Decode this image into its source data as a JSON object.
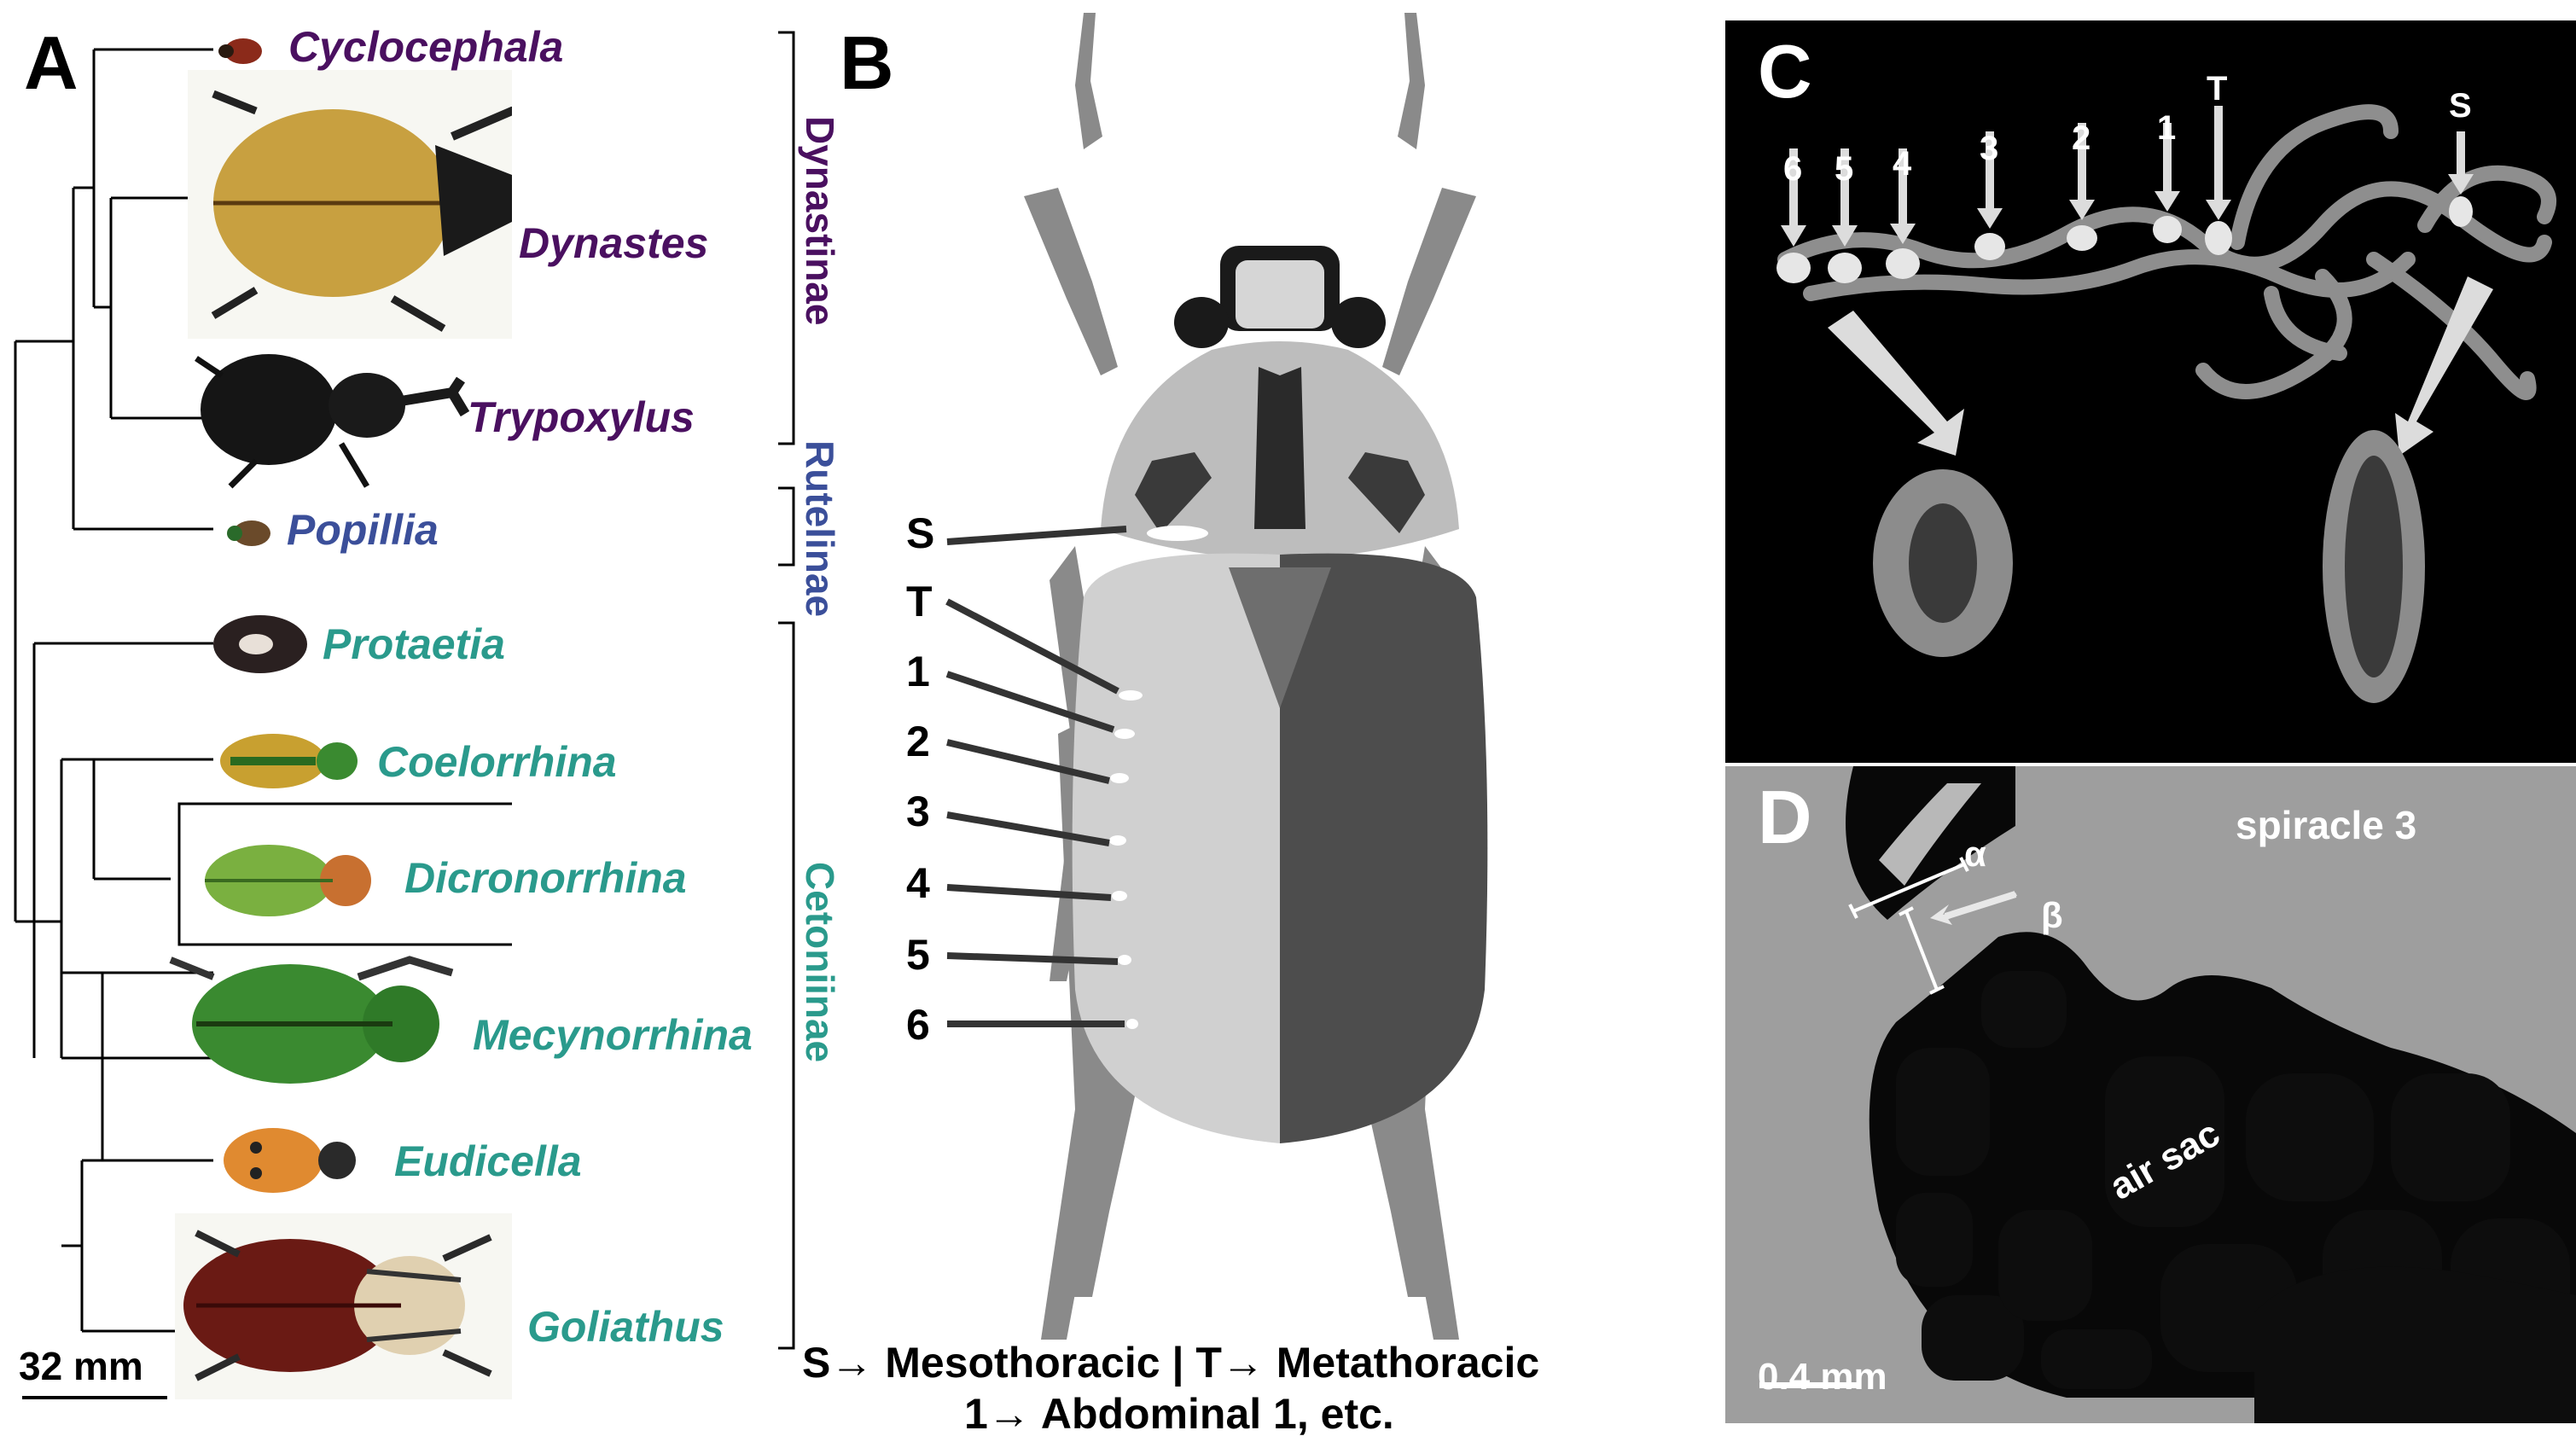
{
  "panel_a": {
    "letter": "A",
    "taxa": [
      {
        "name": "Cyclocephala",
        "clade": "Dynastinae"
      },
      {
        "name": "Dynastes",
        "clade": "Dynastinae"
      },
      {
        "name": "Trypoxylus",
        "clade": "Dynastinae"
      },
      {
        "name": "Popillia",
        "clade": "Rutelinae"
      },
      {
        "name": "Protaetia",
        "clade": "Cetoniinae"
      },
      {
        "name": "Coelorrhina",
        "clade": "Cetoniinae"
      },
      {
        "name": "Dicronorrhina",
        "clade": "Cetoniinae",
        "boxed": true
      },
      {
        "name": "Mecynorrhina",
        "clade": "Cetoniinae"
      },
      {
        "name": "Eudicella",
        "clade": "Cetoniinae"
      },
      {
        "name": "Goliathus",
        "clade": "Cetoniinae"
      }
    ],
    "clades": [
      {
        "name": "Dynastinae",
        "color": "#4a1060"
      },
      {
        "name": "Rutelinae",
        "color": "#3b4f9a"
      },
      {
        "name": "Cetoniinae",
        "color": "#2a9a8c"
      }
    ],
    "scale_bar": "32 mm"
  },
  "panel_b": {
    "letter": "B",
    "spiracle_labels": [
      "S",
      "T",
      "1",
      "2",
      "3",
      "4",
      "5",
      "6"
    ],
    "caption_line1": "S→ Mesothoracic | T→ Metathoracic",
    "caption_line2": "1→ Abdominal 1, etc."
  },
  "panel_c": {
    "letter": "C",
    "spiracle_labels": [
      "6",
      "5",
      "4",
      "3",
      "2",
      "1",
      "T",
      "S"
    ]
  },
  "panel_d": {
    "letter": "D",
    "alpha": "α",
    "beta": "β",
    "spiracle_label": "spiracle 3",
    "air_sac_label": "air sac",
    "scale_bar": "0.4 mm"
  },
  "colors": {
    "dynastinae": "#4a1060",
    "rutelinae": "#3b4f9a",
    "cetoniinae": "#2a9a8c"
  }
}
